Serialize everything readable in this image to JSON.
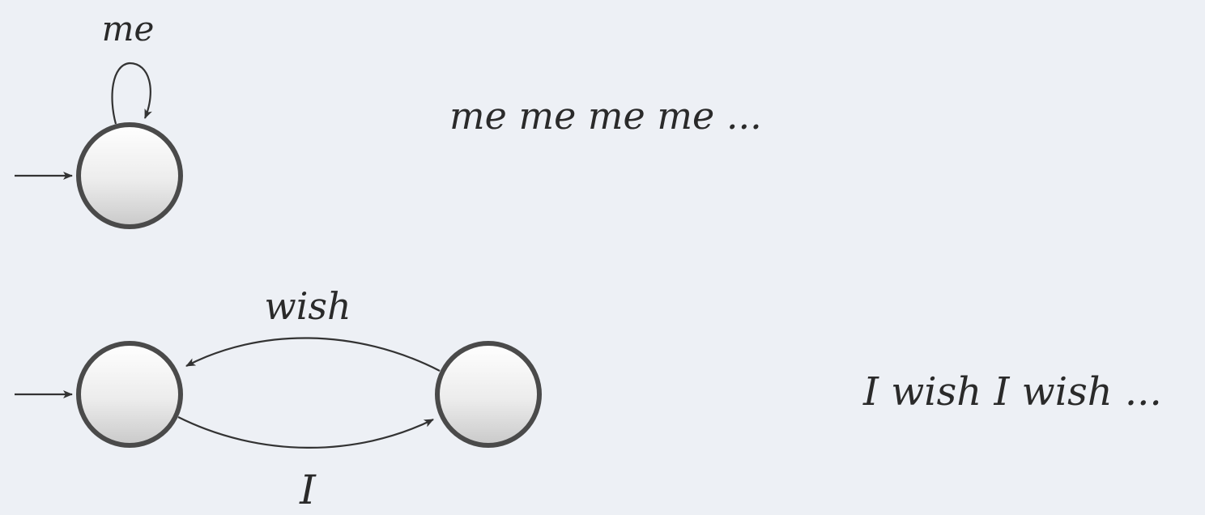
{
  "automaton_top": {
    "loop_label": "me",
    "language": "me me me me ..."
  },
  "automaton_bottom": {
    "edge_back_label": "wish",
    "edge_forward_label": "I",
    "language": "I wish I wish ..."
  }
}
